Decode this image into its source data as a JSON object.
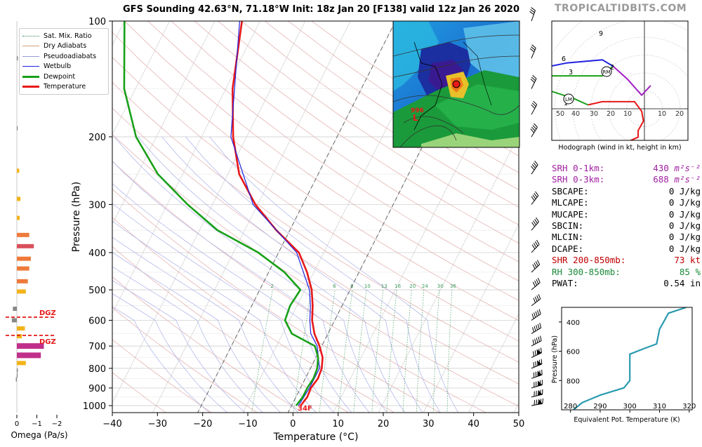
{
  "title": "GFS Sounding 42.63°N, 71.18°W Init: 18z Jan 20 [F138] valid 12z Jan 26 2020",
  "brand": "TROPICALTIDBITS.COM",
  "legend": [
    {
      "label": "Sat. Mix. Ratio",
      "color": "#2e8b57",
      "style": "dotted"
    },
    {
      "label": "Dry Adiabats",
      "color": "#d2a07a",
      "style": "solid"
    },
    {
      "label": "Pseudoadiabats",
      "color": "#9999dd",
      "style": "solid"
    },
    {
      "label": "Wetbulb",
      "color": "#2020e0",
      "style": "solid"
    },
    {
      "label": "Dewpoint",
      "color": "#18a018",
      "style": "thick"
    },
    {
      "label": "Temperature",
      "color": "#e81818",
      "style": "thick"
    }
  ],
  "skewt": {
    "ylabel": "Pressure (hPa)",
    "xlabel": "Temperature (°C)",
    "pressure_ticks": [
      "100",
      "200",
      "300",
      "400",
      "500",
      "600",
      "700",
      "800",
      "900",
      "1000"
    ],
    "temp_ticks": [
      "−40",
      "−30",
      "−20",
      "−10",
      "0",
      "10",
      "20",
      "30",
      "40",
      "50"
    ],
    "mixing_ratio_labels": [
      "2",
      "4",
      "6",
      "8",
      "10",
      "13",
      "16",
      "20",
      "24",
      "30",
      "36"
    ],
    "surface_temp_label": "34F"
  },
  "omega": {
    "xlabel": "Omega (Pa/s)",
    "ticks": [
      "0",
      "−1",
      "−2"
    ],
    "dgz_label": "DGZ"
  },
  "hodograph": {
    "caption": "Hodograph (wind in kt, height in km)",
    "ring_labels": [
      "50",
      "40",
      "30",
      "20",
      "10",
      "10",
      "20"
    ],
    "height_labels": [
      "9",
      "6",
      "3",
      "2",
      "1"
    ],
    "markers": [
      "RM",
      "LM"
    ]
  },
  "stats": [
    {
      "label": "SRH 0-1km:",
      "value": "430",
      "unit": "m²s⁻²",
      "color": "purple"
    },
    {
      "label": "SRH 0-3km:",
      "value": "688",
      "unit": "m²s⁻²",
      "color": "purple"
    },
    {
      "label": "SBCAPE:",
      "value": "0",
      "unit": "J/kg",
      "color": "black"
    },
    {
      "label": "MLCAPE:",
      "value": "0",
      "unit": "J/kg",
      "color": "black"
    },
    {
      "label": "MUCAPE:",
      "value": "0",
      "unit": "J/kg",
      "color": "black"
    },
    {
      "label": "SBCIN:",
      "value": "0",
      "unit": "J/kg",
      "color": "black"
    },
    {
      "label": "MLCIN:",
      "value": "0",
      "unit": "J/kg",
      "color": "black"
    },
    {
      "label": "DCAPE:",
      "value": "0",
      "unit": "J/kg",
      "color": "black"
    },
    {
      "label": "SHR 200-850mb:",
      "value": "73",
      "unit": "kt",
      "color": "red"
    },
    {
      "label": "RH 300-850mb:",
      "value": "85",
      "unit": "%",
      "color": "green"
    },
    {
      "label": "PWAT:",
      "value": "0.54",
      "unit": "in",
      "color": "black"
    }
  ],
  "inset_map": {
    "low_label": "996"
  },
  "chart_data": [
    {
      "type": "line",
      "name": "skew-t",
      "series": [
        {
          "name": "Temperature",
          "color": "#e81818",
          "points": [
            [
              1000,
              2.0
            ],
            [
              950,
              2.5
            ],
            [
              900,
              2.3
            ],
            [
              850,
              2.8
            ],
            [
              800,
              2.5
            ],
            [
              750,
              1.5
            ],
            [
              700,
              -0.5
            ],
            [
              650,
              -3.0
            ],
            [
              600,
              -5.0
            ],
            [
              550,
              -6.5
            ],
            [
              500,
              -8.5
            ],
            [
              450,
              -11.5
            ],
            [
              400,
              -15.5
            ],
            [
              350,
              -23.0
            ],
            [
              300,
              -30.5
            ],
            [
              250,
              -37.5
            ],
            [
              200,
              -43.0
            ],
            [
              150,
              -48.5
            ],
            [
              100,
              -54.0
            ]
          ]
        },
        {
          "name": "Wetbulb",
          "color": "#2020e0",
          "points": [
            [
              1000,
              1.5
            ],
            [
              900,
              2.0
            ],
            [
              800,
              2.0
            ],
            [
              700,
              -1.0
            ],
            [
              650,
              -3.8
            ],
            [
              600,
              -5.5
            ],
            [
              550,
              -7.0
            ],
            [
              500,
              -9.0
            ],
            [
              400,
              -16.0
            ],
            [
              300,
              -31.0
            ],
            [
              200,
              -43.5
            ],
            [
              100,
              -54.5
            ]
          ]
        },
        {
          "name": "Dewpoint",
          "color": "#18a018",
          "points": [
            [
              1000,
              1.0
            ],
            [
              950,
              1.5
            ],
            [
              900,
              1.5
            ],
            [
              850,
              1.8
            ],
            [
              800,
              1.5
            ],
            [
              750,
              0.5
            ],
            [
              700,
              -1.5
            ],
            [
              650,
              -8.0
            ],
            [
              600,
              -11.0
            ],
            [
              550,
              -11.5
            ],
            [
              500,
              -11.0
            ],
            [
              450,
              -16.5
            ],
            [
              400,
              -24.5
            ],
            [
              350,
              -36.0
            ],
            [
              300,
              -45.5
            ],
            [
              250,
              -55.5
            ],
            [
              200,
              -64.5
            ],
            [
              150,
              -72.5
            ],
            [
              100,
              -80.0
            ]
          ]
        }
      ],
      "xlim": [
        -40,
        50
      ],
      "ylim": [
        1050,
        100
      ],
      "y_scale": "log"
    },
    {
      "type": "bar",
      "name": "omega",
      "orientation": "horizontal",
      "pressure": [
        125,
        190,
        245,
        290,
        325,
        360,
        385,
        415,
        440,
        475,
        505,
        560,
        600,
        630,
        660,
        700,
        740,
        775,
        810,
        835,
        855
      ],
      "values": [
        -0.05,
        -0.02,
        -0.12,
        -0.18,
        -0.14,
        -0.62,
        -0.85,
        -0.7,
        -0.62,
        -0.55,
        -0.45,
        0.2,
        0.25,
        -0.4,
        -0.25,
        -1.35,
        -1.2,
        -0.45,
        -0.05,
        -0.02,
        0.05
      ],
      "xlim": [
        0.3,
        -2.3
      ]
    },
    {
      "type": "line",
      "name": "hodograph",
      "series": [
        {
          "name": "0-1km",
          "color": "#e81818",
          "points": [
            [
              10,
              -13
            ],
            [
              2,
              -11
            ],
            [
              -12,
              -12
            ],
            [
              -20,
              -8
            ],
            [
              -20,
              -4
            ],
            [
              -23,
              2
            ],
            [
              -22,
              8
            ],
            [
              -18,
              14
            ],
            [
              -10,
              14
            ],
            [
              0,
              14
            ],
            [
              8,
              12
            ]
          ]
        },
        {
          "name": "3-6km",
          "color": "#18a018",
          "points": [
            [
              8,
              12
            ],
            [
              16,
              16
            ],
            [
              30,
              21
            ],
            [
              35,
              28
            ],
            [
              28,
              30
            ],
            [
              0,
              30
            ],
            [
              -6,
              36
            ]
          ]
        },
        {
          "name": "6-9km",
          "color": "#a020c0",
          "points": [
            [
              -6,
              36
            ],
            [
              -14,
              28
            ],
            [
              -22,
              18
            ],
            [
              -27,
              24
            ]
          ]
        },
        {
          "name": "9km+",
          "color": "#2020e0",
          "points": [
            [
              -6,
              36
            ],
            [
              0,
              40
            ],
            [
              20,
              38
            ],
            [
              38,
              34
            ],
            [
              48,
              30
            ],
            [
              58,
              22
            ]
          ]
        }
      ]
    },
    {
      "type": "line",
      "name": "equivalent-potential-temperature",
      "xlabel": "Equivalent Pot. Temperature (K)",
      "ylabel": "Pressure (hPa)",
      "x_ticks": [
        "280",
        "290",
        "300",
        "310",
        "320"
      ],
      "y_ticks": [
        "400",
        "600",
        "800"
      ],
      "x": [
        281,
        284,
        290,
        298,
        300,
        300,
        300,
        305,
        309,
        310,
        313,
        319
      ],
      "y": [
        1000,
        950,
        900,
        850,
        800,
        700,
        620,
        580,
        550,
        450,
        340,
        300
      ],
      "xlim": [
        277,
        321
      ],
      "ylim": [
        1000,
        300
      ]
    }
  ]
}
